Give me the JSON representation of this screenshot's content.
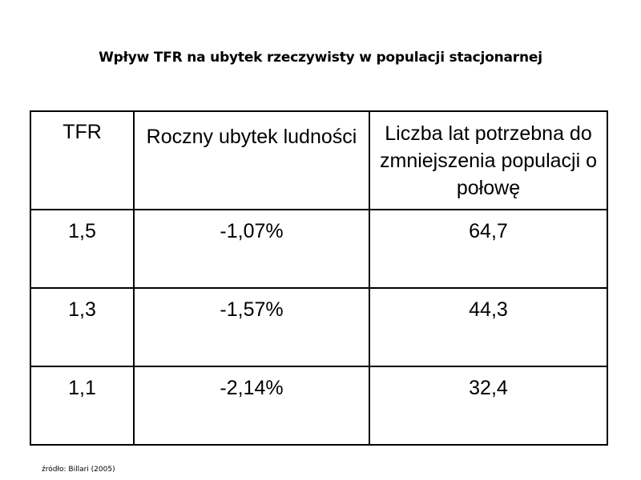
{
  "title": "Wpływ TFR na ubytek rzeczywisty w populacji stacjonarnej",
  "table": {
    "headers": [
      "TFR",
      "Roczny ubytek ludności",
      "Liczba lat potrzebna do zmniejszenia populacji o połowę"
    ],
    "rows": [
      [
        "1,5",
        "-1,07%",
        "64,7"
      ],
      [
        "1,3",
        "-1,57%",
        "44,3"
      ],
      [
        "1,1",
        "-2,14%",
        "32,4"
      ]
    ]
  },
  "source": "źródło: Billari (2005)"
}
